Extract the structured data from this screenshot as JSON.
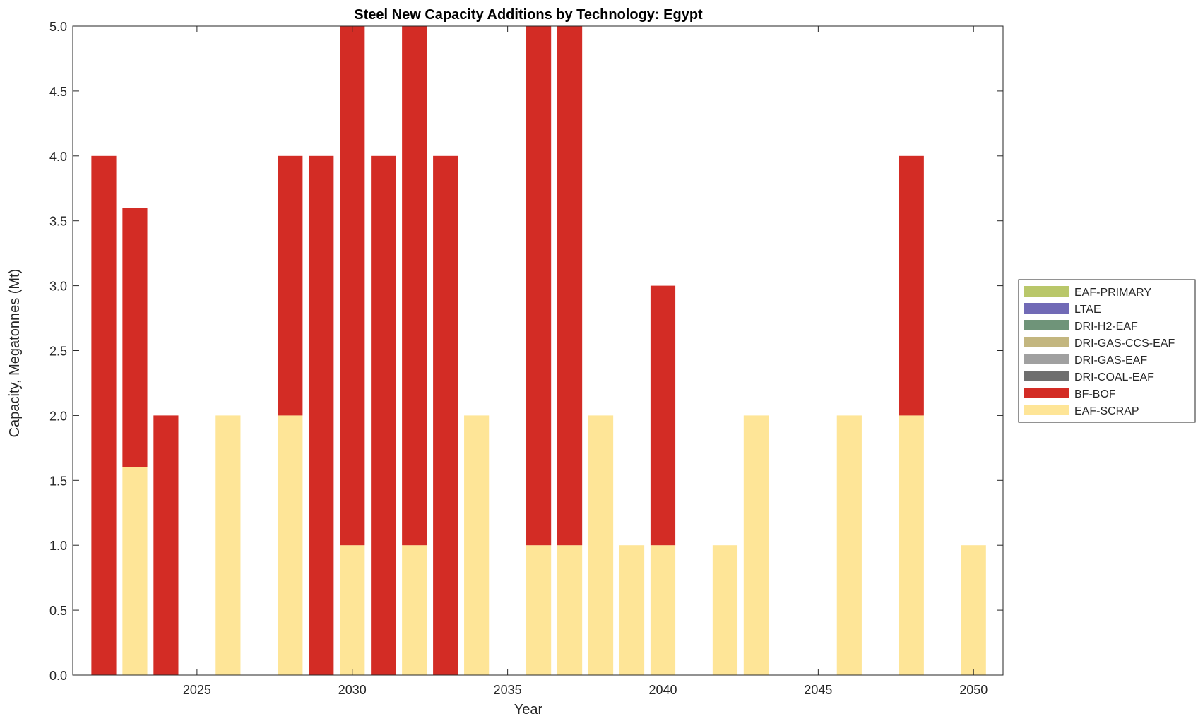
{
  "chart_data": {
    "type": "bar",
    "stacked": true,
    "title": "Steel New Capacity Additions by Technology: Egypt",
    "xlabel": "Year",
    "ylabel": "Capacity, Megatonnes (Mt)",
    "xlim": [
      2021,
      2050.95
    ],
    "ylim": [
      0,
      5
    ],
    "xticks": [
      2025,
      2030,
      2035,
      2040,
      2045,
      2050
    ],
    "yticks": [
      0.0,
      0.5,
      1.0,
      1.5,
      2.0,
      2.5,
      3.0,
      3.5,
      4.0,
      4.5,
      5.0
    ],
    "ytick_labels": [
      "0.0",
      "0.5",
      "1.0",
      "1.5",
      "2.0",
      "2.5",
      "3.0",
      "3.5",
      "4.0",
      "4.5",
      "5.0"
    ],
    "legend_position": "right",
    "categories": [
      2022,
      2023,
      2024,
      2025,
      2026,
      2027,
      2028,
      2029,
      2030,
      2031,
      2032,
      2033,
      2034,
      2035,
      2036,
      2037,
      2038,
      2039,
      2040,
      2041,
      2042,
      2043,
      2044,
      2045,
      2046,
      2047,
      2048,
      2049,
      2050
    ],
    "series": [
      {
        "name": "EAF-SCRAP",
        "color": "#FEE597",
        "values": [
          0,
          1.6,
          0,
          0,
          2,
          0,
          2,
          0,
          1,
          0,
          1,
          0,
          2,
          0,
          1,
          1,
          2,
          1,
          1,
          0,
          1,
          2,
          0,
          0,
          2,
          0,
          2,
          0,
          1
        ]
      },
      {
        "name": "BF-BOF",
        "color": "#D32C25",
        "values": [
          4,
          2,
          2,
          0,
          0,
          0,
          2,
          4,
          4,
          4,
          4,
          4,
          0,
          0,
          4,
          4,
          0,
          0,
          2,
          0,
          0,
          0,
          0,
          0,
          0,
          0,
          2,
          0,
          0
        ]
      },
      {
        "name": "DRI-COAL-EAF",
        "color": "#6E6E6E",
        "values": [
          0,
          0,
          0,
          0,
          0,
          0,
          0,
          0,
          0,
          0,
          0,
          0,
          0,
          0,
          0,
          0,
          0,
          0,
          0,
          0,
          0,
          0,
          0,
          0,
          0,
          0,
          0,
          0,
          0
        ]
      },
      {
        "name": "DRI-GAS-EAF",
        "color": "#A0A0A0",
        "values": [
          0,
          0,
          0,
          0,
          0,
          0,
          0,
          0,
          0,
          0,
          0,
          0,
          0,
          0,
          0,
          0,
          0,
          0,
          0,
          0,
          0,
          0,
          0,
          0,
          0,
          0,
          0,
          0,
          0
        ]
      },
      {
        "name": "DRI-GAS-CCS-EAF",
        "color": "#C3B67F",
        "values": [
          0,
          0,
          0,
          0,
          0,
          0,
          0,
          0,
          0,
          0,
          0,
          0,
          0,
          0,
          0,
          0,
          0,
          0,
          0,
          0,
          0,
          0,
          0,
          0,
          0,
          0,
          0,
          0,
          0
        ]
      },
      {
        "name": "DRI-H2-EAF",
        "color": "#6F9479",
        "values": [
          0,
          0,
          0,
          0,
          0,
          0,
          0,
          0,
          0,
          0,
          0,
          0,
          0,
          0,
          0,
          0,
          0,
          0,
          0,
          0,
          0,
          0,
          0,
          0,
          0,
          0,
          0,
          0,
          0
        ]
      },
      {
        "name": "LTAE",
        "color": "#716AB6",
        "values": [
          0,
          0,
          0,
          0,
          0,
          0,
          0,
          0,
          0,
          0,
          0,
          0,
          0,
          0,
          0,
          0,
          0,
          0,
          0,
          0,
          0,
          0,
          0,
          0,
          0,
          0,
          0,
          0,
          0
        ]
      },
      {
        "name": "EAF-PRIMARY",
        "color": "#B9C76A",
        "values": [
          0,
          0,
          0,
          0,
          0,
          0,
          0,
          0,
          0,
          0,
          0,
          0,
          0,
          0,
          0,
          0,
          0,
          0,
          0,
          0,
          0,
          0,
          0,
          0,
          0,
          0,
          0,
          0,
          0
        ]
      }
    ],
    "legend_order": [
      "EAF-PRIMARY",
      "LTAE",
      "DRI-H2-EAF",
      "DRI-GAS-CCS-EAF",
      "DRI-GAS-EAF",
      "DRI-COAL-EAF",
      "BF-BOF",
      "EAF-SCRAP"
    ]
  }
}
